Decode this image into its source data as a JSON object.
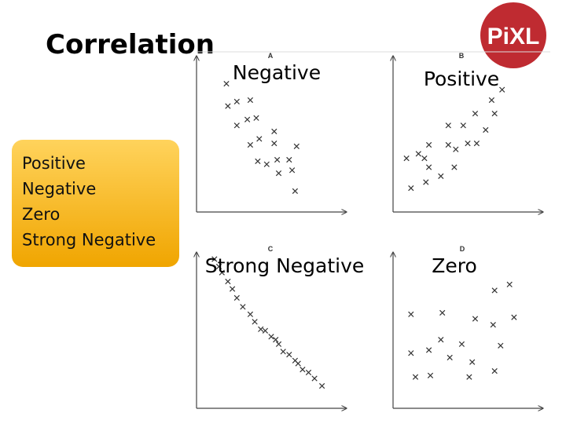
{
  "slide": {
    "title": "Correlation",
    "options": [
      "Positive",
      "Negative",
      "Zero",
      "Strong Negative"
    ],
    "logo": "PiXL"
  },
  "chart_data": [
    {
      "type": "scatter",
      "panel": "A",
      "title": "Negative",
      "xlim": [
        0,
        10
      ],
      "ylim": [
        0,
        10
      ],
      "color": "#333333",
      "x": [
        2.0,
        2.1,
        2.7,
        3.6,
        2.7,
        3.4,
        4.0,
        5.2,
        3.6,
        4.2,
        5.2,
        6.7,
        4.1,
        4.7,
        5.4,
        6.2,
        5.5,
        6.4,
        6.6
      ],
      "y": [
        8.6,
        7.1,
        7.4,
        7.5,
        5.8,
        6.2,
        6.3,
        5.4,
        4.5,
        4.9,
        4.6,
        4.4,
        3.4,
        3.2,
        3.5,
        3.5,
        2.6,
        2.8,
        1.4
      ]
    },
    {
      "type": "scatter",
      "panel": "B",
      "title": "Positive",
      "xlim": [
        0,
        10
      ],
      "ylim": [
        0,
        10
      ],
      "color": "#333333",
      "x": [
        7.3,
        6.6,
        5.5,
        6.8,
        3.7,
        4.7,
        6.2,
        2.4,
        3.7,
        4.2,
        5.0,
        5.6,
        1.7,
        0.9,
        2.1,
        2.4,
        4.1,
        3.2,
        2.2,
        1.2
      ],
      "y": [
        8.2,
        7.5,
        6.6,
        6.6,
        5.8,
        5.8,
        5.5,
        4.5,
        4.5,
        4.2,
        4.6,
        4.6,
        3.9,
        3.6,
        3.6,
        3.0,
        3.0,
        2.4,
        2.0,
        1.6
      ]
    },
    {
      "type": "scatter",
      "panel": "C",
      "title": "Strong Negative",
      "xlim": [
        0,
        10
      ],
      "ylim": [
        0,
        10
      ],
      "color": "#333333",
      "x": [
        1.2,
        1.5,
        1.7,
        2.1,
        2.4,
        2.7,
        3.1,
        3.6,
        3.9,
        4.3,
        4.6,
        5.0,
        5.3,
        5.5,
        5.8,
        6.2,
        6.6,
        6.8,
        7.1,
        7.5,
        7.9,
        8.4
      ],
      "y": [
        10.0,
        9.5,
        9.1,
        8.5,
        8.0,
        7.4,
        6.8,
        6.3,
        5.8,
        5.3,
        5.2,
        4.8,
        4.6,
        4.3,
        3.8,
        3.6,
        3.2,
        3.0,
        2.6,
        2.4,
        2.0,
        1.5
      ]
    },
    {
      "type": "scatter",
      "panel": "D",
      "title": "Zero",
      "xlim": [
        0,
        10
      ],
      "ylim": [
        0,
        10
      ],
      "color": "#333333",
      "x": [
        7.8,
        6.8,
        1.2,
        3.3,
        5.5,
        8.1,
        6.7,
        3.2,
        4.6,
        7.2,
        2.4,
        1.2,
        3.8,
        5.3,
        6.8,
        1.5,
        2.5,
        5.1
      ],
      "y": [
        8.3,
        7.9,
        6.3,
        6.4,
        6.0,
        6.1,
        5.6,
        4.6,
        4.3,
        4.2,
        3.9,
        3.7,
        3.4,
        3.1,
        2.5,
        2.1,
        2.2,
        2.1
      ]
    }
  ]
}
